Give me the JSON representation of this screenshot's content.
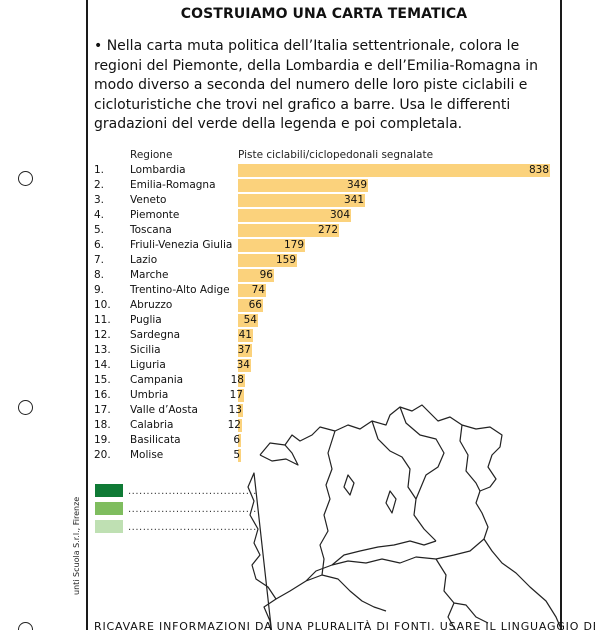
{
  "title": "COSTRUIAMO UNA CARTA TEMATICA",
  "instruction": "• Nella carta muta politica dell’Italia settentrionale, colora le regioni del Piemonte, della Lombardia e dell’Emilia-Romagna in modo diverso a seconda del numero delle loro piste ciclabili e cicloturistiche che trovi nel grafico a barre. Usa le differenti gradazioni del verde della legenda e poi completala.",
  "table_header": {
    "region": "Regione",
    "value": "Piste ciclabili/ciclopedonali segnalate"
  },
  "colors": {
    "bar": "#fbd27c",
    "legend": [
      "#0f7a35",
      "#7fbd5f",
      "#bfe0b3"
    ]
  },
  "chart_data": {
    "type": "bar",
    "orientation": "horizontal",
    "categories": [
      "Lombardia",
      "Emilia-Romagna",
      "Veneto",
      "Piemonte",
      "Toscana",
      "Friuli-Venezia Giulia",
      "Lazio",
      "Marche",
      "Trentino-Alto Adige",
      "Abruzzo",
      "Puglia",
      "Sardegna",
      "Sicilia",
      "Liguria",
      "Campania",
      "Umbria",
      "Valle d’Aosta",
      "Calabria",
      "Basilicata",
      "Molise"
    ],
    "ranks": [
      "1.",
      "2.",
      "3.",
      "4.",
      "5.",
      "6.",
      "7.",
      "8.",
      "9.",
      "10.",
      "11.",
      "12.",
      "13.",
      "14.",
      "15.",
      "16.",
      "17.",
      "18.",
      "19.",
      "20."
    ],
    "values": [
      838,
      349,
      341,
      304,
      272,
      179,
      159,
      96,
      74,
      66,
      54,
      41,
      37,
      34,
      18,
      17,
      13,
      12,
      6,
      5
    ],
    "xlim": [
      0,
      838
    ]
  },
  "legend_blank": "...................................",
  "credit": "unti Scuola S.r.l., Firenze",
  "footer": "RICAVARE INFORMAZIONI DA UNA PLURALITÀ DI FONTI. USARE IL LINGUAGGIO DELLA"
}
